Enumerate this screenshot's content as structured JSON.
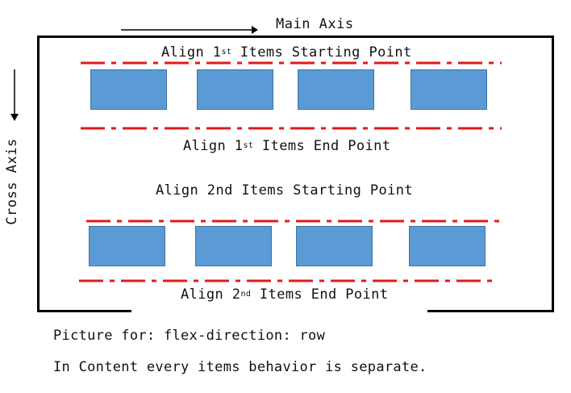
{
  "main_axis": {
    "label": "Main Axis"
  },
  "cross_axis": {
    "label": "Cross Axis"
  },
  "rows": [
    {
      "start_label": {
        "prefix": "Align 1",
        "sup": "st",
        "suffix": " Items Starting Point"
      },
      "end_label": {
        "prefix": "Align 1",
        "sup": "st",
        "suffix": " Items End Point"
      }
    },
    {
      "start_label": {
        "prefix": "Align 2nd Items Starting Point",
        "sup": "",
        "suffix": ""
      },
      "end_label": {
        "prefix": "Align 2",
        "sup": "nd",
        "suffix": " Items End Point"
      }
    }
  ],
  "captions": {
    "line1": "Picture for: flex-direction: row",
    "line2": "In Content every items behavior is separate."
  },
  "colors": {
    "item_fill": "#5b9bd5",
    "item_border": "#41719c",
    "alignment_line": "#e01b1b",
    "container_border": "#000000"
  }
}
